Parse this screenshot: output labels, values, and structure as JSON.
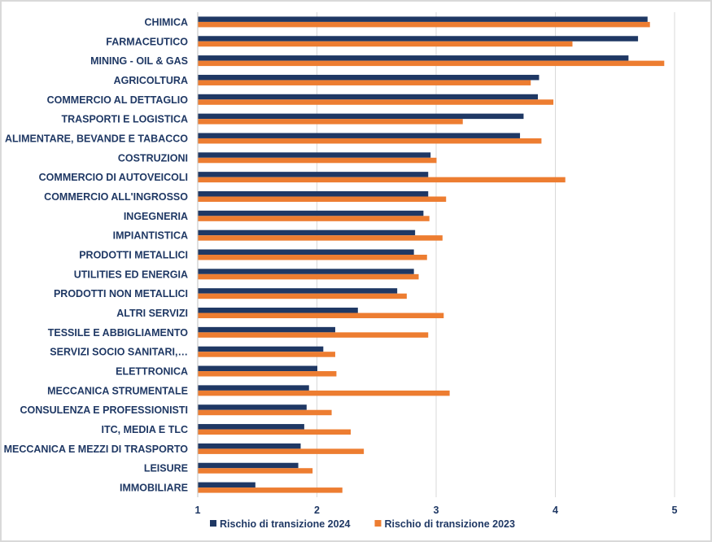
{
  "chart_data": {
    "type": "bar",
    "orientation": "horizontal",
    "categories": [
      "CHIMICA",
      "FARMACEUTICO",
      "MINING - OIL & GAS",
      "AGRICOLTURA",
      "COMMERCIO AL DETTAGLIO",
      "TRASPORTI E LOGISTICA",
      "ALIMENTARE, BEVANDE E TABACCO",
      "COSTRUZIONI",
      "COMMERCIO DI AUTOVEICOLI",
      "COMMERCIO ALL'INGROSSO",
      "INGEGNERIA",
      "IMPIANTISTICA",
      "PRODOTTI METALLICI",
      "UTILITIES ED ENERGIA",
      "PRODOTTI NON METALLICI",
      "ALTRI SERVIZI",
      "TESSILE E ABBIGLIAMENTO",
      "SERVIZI SOCIO SANITARI,…",
      "ELETTRONICA",
      "MECCANICA STRUMENTALE",
      "CONSULENZA E PROFESSIONISTI",
      "ITC, MEDIA E TLC",
      "MECCANICA E MEZZI DI TRASPORTO",
      "LEISURE",
      "IMMOBILIARE"
    ],
    "series": [
      {
        "name": "Rischio di transizione 2024",
        "color": "#1f3864",
        "values": [
          4.77,
          4.69,
          4.61,
          3.86,
          3.85,
          3.73,
          3.7,
          2.95,
          2.93,
          2.93,
          2.89,
          2.82,
          2.81,
          2.81,
          2.67,
          2.34,
          2.15,
          2.05,
          2.0,
          1.93,
          1.91,
          1.89,
          1.86,
          1.84,
          1.48
        ]
      },
      {
        "name": "Rischio di transizione 2023",
        "color": "#ed7d31",
        "values": [
          4.79,
          4.14,
          4.91,
          3.79,
          3.98,
          3.22,
          3.88,
          3.0,
          4.08,
          3.08,
          2.94,
          3.05,
          2.92,
          2.85,
          2.75,
          3.06,
          2.93,
          2.15,
          2.16,
          3.11,
          2.12,
          2.28,
          2.39,
          1.96,
          2.21
        ]
      }
    ],
    "xlim": [
      1,
      5
    ],
    "xticks": [
      "1",
      "2",
      "3",
      "4",
      "5"
    ],
    "grid": "vertical",
    "legend": "bottom",
    "title": "",
    "xlabel": "",
    "ylabel": ""
  }
}
